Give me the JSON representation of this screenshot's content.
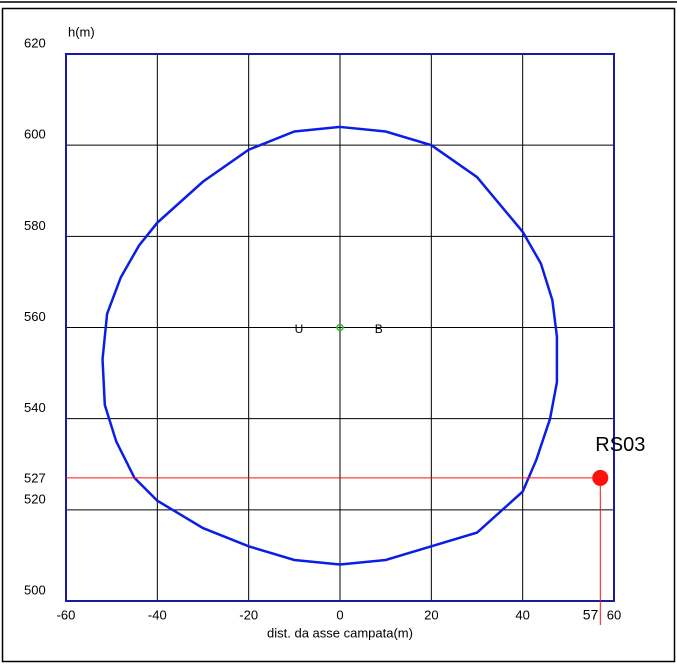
{
  "chart_data": {
    "type": "line",
    "ylabel": "h(m)",
    "xlabel": "dist. da asse campata(m)",
    "xlim": [
      -60,
      60
    ],
    "ylim": [
      500,
      620
    ],
    "xticks": [
      -60,
      -40,
      -20,
      0,
      20,
      40,
      60
    ],
    "yticks": [
      500,
      520,
      540,
      560,
      580,
      600,
      620
    ],
    "grid": true,
    "series": [
      {
        "color": "#0a1ee6",
        "x": [
          0,
          10,
          20,
          30,
          40,
          44,
          46.5,
          47.5,
          47.5,
          46,
          43,
          40,
          30,
          20,
          10,
          0,
          -10,
          -20,
          -30,
          -40,
          -45,
          -49,
          -51.5,
          -52,
          -51,
          -48,
          -44,
          -40,
          -30,
          -20,
          -10
        ],
        "values": [
          604,
          603,
          600,
          593,
          581,
          574,
          566,
          558,
          548,
          540,
          531,
          524,
          515,
          512,
          509,
          508,
          509,
          512,
          516,
          522,
          527,
          535,
          543,
          553,
          563,
          571,
          578,
          583,
          592,
          599,
          603
        ]
      }
    ],
    "center": {
      "x": 0,
      "y": 560,
      "color": "#2fbf2f"
    },
    "annotations": [
      {
        "text": "U",
        "x": -9,
        "y": 559.5,
        "color": "#e02020"
      },
      {
        "text": "B",
        "x": 8.5,
        "y": 559.5,
        "color": "#2040e0"
      }
    ],
    "points": [
      {
        "label": "RS03",
        "x": 57,
        "y": 527,
        "color": "#ff1010"
      }
    ]
  }
}
